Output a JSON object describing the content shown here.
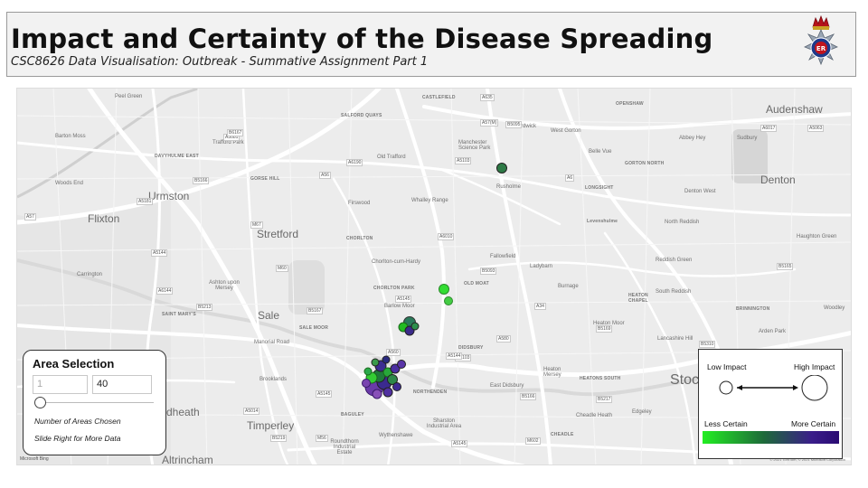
{
  "header": {
    "title": "Impact and Certainty of the Disease Spreading",
    "subtitle": "CSC8626 Data Visualisation: Outbreak - Summative Assignment Part 1",
    "logo_icon": "police-crest-icon",
    "logo_letters": "ER"
  },
  "map": {
    "towns": {
      "urmston": "Urmston",
      "flixton": "Flixton",
      "stretford": "Stretford",
      "sale": "Sale",
      "timperley": "Timperley",
      "altrincham": "Altrincham",
      "denton": "Denton",
      "audenshaw": "Audenshaw",
      "stockport": "Stoc",
      "heath": "dheath"
    },
    "places": {
      "old_trafford": "Old Trafford",
      "trafford_park": "Trafford Park",
      "manchester_science_park": "Manchester Science Park",
      "rusholme": "Rusholme",
      "whalley_range": "Whalley Range",
      "chorlton_cum_hardy": "Chorlton-cum-Hardy",
      "fallowfield": "Fallowfield",
      "ladybarn": "Ladybarn",
      "burnage": "Burnage",
      "levenshulme": "Levenshulme",
      "west_gorton": "West Gorton",
      "gorton_north": "GORTON NORTH",
      "longsight": "LONGSIGHT",
      "denton_west": "Denton West",
      "north_reddish": "North Reddish",
      "reddish_green": "Reddish Green",
      "south_reddish": "South Reddish",
      "haughton_green": "Haughton Green",
      "heaton_moor": "Heaton Moor",
      "heaton_chapel": "HEATON CHAPEL",
      "lancashire_hill": "Lancashire Hill",
      "brinnington": "BRINNINGTON",
      "woodley": "Woodley",
      "arden_park": "Arden Park",
      "heatons_south": "HEATONS SOUTH",
      "east_didsbury": "East Didsbury",
      "heaton_mersey": "Heaton Mersey",
      "cheadle_heath": "Cheadle Heath",
      "cheadle": "CHEADLE",
      "edgeley": "Edgeley",
      "northenden": "NORTHENDEN",
      "brooklands": "Brooklands",
      "sale_moor": "SALE MOOR",
      "ashton_upon_mersey": "Ashton upon Mersey",
      "carrington": "Carrington",
      "barlow_moor": "Barlow Moor",
      "chorlton_park": "CHORLTON PARK",
      "old_moat": "OLD MOAT",
      "didsbury": "DIDSBURY",
      "wythenshawe": "Wythenshawe",
      "sharston": "Sharston Industrial Area",
      "baguley": "BAGULEY",
      "roundthorn": "Roundthorn Industrial Estate",
      "gorse_hill": "GORSE HILL",
      "davyhulme": "DAVYHULME EAST",
      "woods_end": "Woods End",
      "barton_moss": "Barton Moss",
      "peel_green": "Peel Green",
      "whalley_range_chorlton": "CHORLTON",
      "firswood": "Firswood",
      "salford_quays": "SALFORD QUAYS",
      "castlefield": "CASTLEFIELD",
      "openshaw": "OPENSHAW",
      "ardwick": "Ardwick",
      "belle_vue": "Belle Vue",
      "abbey_hey": "Abbey Hey",
      "sudbury": "Sudbury",
      "st_marys": "SAINT MARY'S",
      "manor_farm": "Manorial Road"
    },
    "roads": [
      "A57",
      "A5081",
      "M60",
      "A56",
      "A5103",
      "A6010",
      "A5145",
      "B5167",
      "A560",
      "A34",
      "B5093",
      "A6",
      "B5169",
      "A5145",
      "M56",
      "B5166",
      "A5144",
      "A6144",
      "B5213",
      "A5181",
      "A57(M)",
      "A635",
      "B6167",
      "M67",
      "A6017",
      "B5165",
      "A5063",
      "B5217",
      "A580",
      "A6190",
      "M602",
      "A5014",
      "B5219",
      "A5103",
      "B5166",
      "B5095",
      "A5145",
      "A5144",
      "B5310"
    ],
    "attribution": "Microsoft Bing",
    "copyright": "© 2021 TomTom, © 2021 Microsoft Corporation"
  },
  "area_selection": {
    "title": "Area Selection",
    "min_value": "1",
    "max_value": "40",
    "slider_fraction": 0.0,
    "caption_1": "Number of Areas Chosen",
    "caption_2": "Slide Right for More Data"
  },
  "legend": {
    "low_impact": "Low Impact",
    "high_impact": "High Impact",
    "less_certain": "Less Certain",
    "more_certain": "More Certain",
    "color_less": "#22ee22",
    "color_more": "#2a0b73"
  }
}
